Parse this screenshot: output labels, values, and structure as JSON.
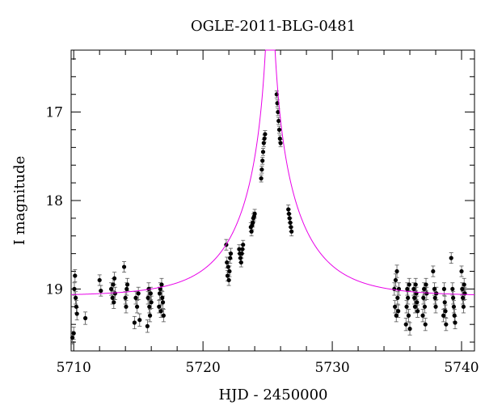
{
  "chart_data": {
    "type": "scatter",
    "title": "OGLE-2011-BLG-0481",
    "xlabel": "HJD - 2450000",
    "ylabel": "I magnitude",
    "xlim": [
      5709.8,
      5741.0
    ],
    "ylim": [
      19.7,
      16.3
    ],
    "y_inverted": true,
    "grid": false,
    "xticks": [
      5710,
      5720,
      5730,
      5740
    ],
    "yticks": [
      17,
      18,
      19
    ],
    "colors": {
      "points": "#000000",
      "model": "#e800e8",
      "frame": "#000000"
    },
    "model": {
      "name": "",
      "base_mag": 19.08,
      "t0": 5725.2,
      "u0": 0.02,
      "tE": 5.0
    },
    "series": [
      {
        "name": "",
        "points": [
          [
            5709.9,
            19.55,
            0.07
          ],
          [
            5710.0,
            19.5,
            0.07
          ],
          [
            5710.05,
            19.0,
            0.07
          ],
          [
            5710.1,
            18.85,
            0.07
          ],
          [
            5710.15,
            19.1,
            0.07
          ],
          [
            5710.2,
            19.2,
            0.07
          ],
          [
            5710.25,
            19.28,
            0.07
          ],
          [
            5710.9,
            19.33,
            0.07
          ],
          [
            5712.0,
            18.9,
            0.06
          ],
          [
            5712.1,
            19.02,
            0.06
          ],
          [
            5712.9,
            19.0,
            0.07
          ],
          [
            5713.0,
            19.1,
            0.07
          ],
          [
            5713.05,
            18.95,
            0.07
          ],
          [
            5713.1,
            19.15,
            0.07
          ],
          [
            5713.15,
            18.88,
            0.07
          ],
          [
            5713.2,
            19.05,
            0.07
          ],
          [
            5713.9,
            18.75,
            0.06
          ],
          [
            5714.0,
            19.1,
            0.07
          ],
          [
            5714.05,
            19.2,
            0.07
          ],
          [
            5714.1,
            19.0,
            0.07
          ],
          [
            5714.15,
            18.95,
            0.07
          ],
          [
            5714.7,
            19.38,
            0.07
          ],
          [
            5714.8,
            19.1,
            0.07
          ],
          [
            5714.9,
            19.2,
            0.07
          ],
          [
            5715.0,
            19.05,
            0.07
          ],
          [
            5715.1,
            19.35,
            0.07
          ],
          [
            5715.7,
            19.42,
            0.07
          ],
          [
            5715.75,
            19.1,
            0.07
          ],
          [
            5715.8,
            19.0,
            0.07
          ],
          [
            5715.85,
            19.2,
            0.07
          ],
          [
            5715.9,
            19.3,
            0.07
          ],
          [
            5715.95,
            19.05,
            0.07
          ],
          [
            5716.0,
            19.15,
            0.07
          ],
          [
            5716.6,
            19.2,
            0.07
          ],
          [
            5716.65,
            19.05,
            0.07
          ],
          [
            5716.7,
            19.0,
            0.07
          ],
          [
            5716.75,
            19.25,
            0.07
          ],
          [
            5716.8,
            18.95,
            0.07
          ],
          [
            5716.85,
            19.1,
            0.07
          ],
          [
            5716.9,
            19.15,
            0.07
          ],
          [
            5716.95,
            19.3,
            0.07
          ],
          [
            5721.8,
            18.5,
            0.06
          ],
          [
            5721.85,
            18.7,
            0.06
          ],
          [
            5721.9,
            18.85,
            0.06
          ],
          [
            5721.95,
            18.75,
            0.06
          ],
          [
            5722.0,
            18.9,
            0.06
          ],
          [
            5722.05,
            18.8,
            0.06
          ],
          [
            5722.1,
            18.65,
            0.06
          ],
          [
            5722.15,
            18.6,
            0.06
          ],
          [
            5722.8,
            18.55,
            0.05
          ],
          [
            5722.85,
            18.6,
            0.05
          ],
          [
            5722.9,
            18.65,
            0.05
          ],
          [
            5722.95,
            18.7,
            0.05
          ],
          [
            5723.0,
            18.6,
            0.05
          ],
          [
            5723.05,
            18.55,
            0.05
          ],
          [
            5723.1,
            18.5,
            0.05
          ],
          [
            5723.7,
            18.3,
            0.05
          ],
          [
            5723.75,
            18.35,
            0.05
          ],
          [
            5723.8,
            18.28,
            0.05
          ],
          [
            5723.85,
            18.25,
            0.05
          ],
          [
            5723.9,
            18.2,
            0.05
          ],
          [
            5723.95,
            18.18,
            0.05
          ],
          [
            5724.0,
            18.15,
            0.05
          ],
          [
            5724.5,
            17.75,
            0.04
          ],
          [
            5724.55,
            17.65,
            0.04
          ],
          [
            5724.6,
            17.55,
            0.04
          ],
          [
            5724.65,
            17.45,
            0.04
          ],
          [
            5724.7,
            17.35,
            0.04
          ],
          [
            5724.75,
            17.3,
            0.04
          ],
          [
            5724.8,
            17.25,
            0.04
          ],
          [
            5725.7,
            16.8,
            0.04
          ],
          [
            5725.75,
            16.9,
            0.04
          ],
          [
            5725.8,
            17.0,
            0.04
          ],
          [
            5725.85,
            17.1,
            0.04
          ],
          [
            5725.9,
            17.2,
            0.04
          ],
          [
            5725.95,
            17.3,
            0.04
          ],
          [
            5726.0,
            17.35,
            0.04
          ],
          [
            5726.6,
            18.1,
            0.05
          ],
          [
            5726.65,
            18.15,
            0.05
          ],
          [
            5726.7,
            18.2,
            0.05
          ],
          [
            5726.75,
            18.25,
            0.05
          ],
          [
            5726.8,
            18.3,
            0.05
          ],
          [
            5726.85,
            18.35,
            0.05
          ],
          [
            5734.8,
            19.0,
            0.07
          ],
          [
            5734.85,
            19.2,
            0.07
          ],
          [
            5734.9,
            18.9,
            0.07
          ],
          [
            5734.95,
            19.3,
            0.07
          ],
          [
            5735.0,
            18.8,
            0.07
          ],
          [
            5735.05,
            19.1,
            0.07
          ],
          [
            5735.1,
            19.25,
            0.07
          ],
          [
            5735.15,
            19.0,
            0.07
          ],
          [
            5735.7,
            19.4,
            0.07
          ],
          [
            5735.75,
            19.2,
            0.07
          ],
          [
            5735.8,
            19.0,
            0.07
          ],
          [
            5735.85,
            19.1,
            0.07
          ],
          [
            5735.9,
            19.3,
            0.07
          ],
          [
            5735.95,
            18.95,
            0.07
          ],
          [
            5736.0,
            19.45,
            0.07
          ],
          [
            5736.3,
            19.0,
            0.07
          ],
          [
            5736.35,
            19.1,
            0.07
          ],
          [
            5736.4,
            19.2,
            0.07
          ],
          [
            5736.45,
            18.95,
            0.07
          ],
          [
            5736.5,
            19.05,
            0.07
          ],
          [
            5736.55,
            19.15,
            0.07
          ],
          [
            5736.6,
            19.25,
            0.07
          ],
          [
            5737.0,
            19.3,
            0.07
          ],
          [
            5737.05,
            19.1,
            0.07
          ],
          [
            5737.1,
            19.0,
            0.07
          ],
          [
            5737.15,
            19.2,
            0.07
          ],
          [
            5737.2,
            19.4,
            0.07
          ],
          [
            5737.25,
            18.95,
            0.07
          ],
          [
            5737.3,
            19.05,
            0.07
          ],
          [
            5737.8,
            18.8,
            0.06
          ],
          [
            5737.9,
            19.0,
            0.07
          ],
          [
            5737.95,
            19.1,
            0.07
          ],
          [
            5738.0,
            19.2,
            0.07
          ],
          [
            5738.05,
            19.05,
            0.07
          ],
          [
            5738.6,
            19.3,
            0.07
          ],
          [
            5738.65,
            19.0,
            0.07
          ],
          [
            5738.7,
            19.15,
            0.07
          ],
          [
            5738.75,
            19.25,
            0.07
          ],
          [
            5738.8,
            19.4,
            0.07
          ],
          [
            5739.2,
            18.65,
            0.06
          ],
          [
            5739.3,
            19.0,
            0.07
          ],
          [
            5739.35,
            19.1,
            0.07
          ],
          [
            5739.4,
            19.2,
            0.07
          ],
          [
            5739.45,
            19.3,
            0.07
          ],
          [
            5739.5,
            19.38,
            0.07
          ],
          [
            5740.0,
            18.8,
            0.06
          ],
          [
            5740.05,
            19.0,
            0.07
          ],
          [
            5740.1,
            19.1,
            0.07
          ],
          [
            5740.15,
            19.2,
            0.07
          ],
          [
            5740.2,
            18.95,
            0.07
          ],
          [
            5740.25,
            19.05,
            0.07
          ]
        ]
      }
    ]
  }
}
